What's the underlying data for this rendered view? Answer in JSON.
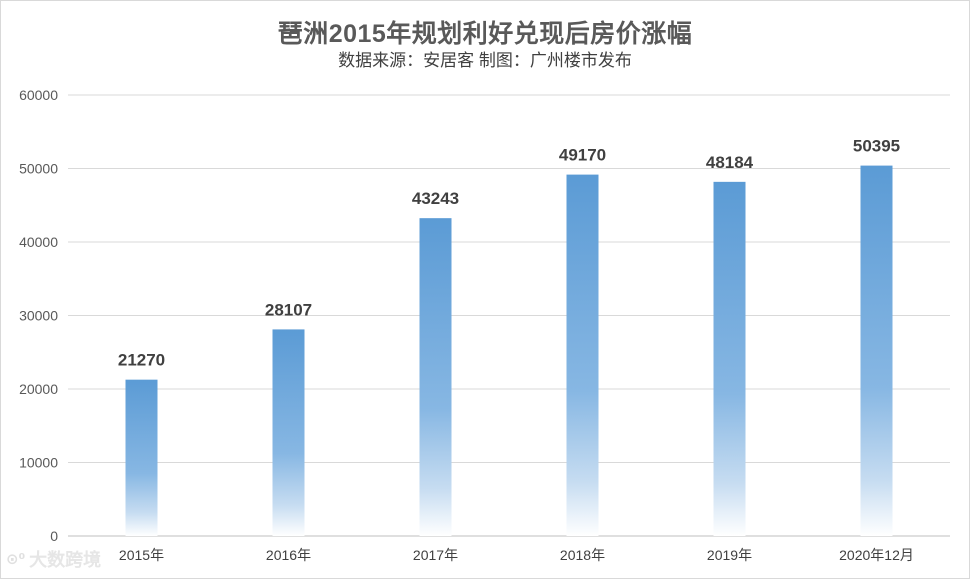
{
  "title": "琶洲2015年规划利好兑现后房价涨幅",
  "subtitle": "数据来源：安居客  制图：广州楼市发布",
  "watermark": {
    "text": "大数跨境",
    "icon": "watermark-logo-icon"
  },
  "colors": {
    "bar_top": "#5b9bd5",
    "bar_bottom": "#ffffff",
    "grid": "#d9d9d9",
    "text": "#404040"
  },
  "chart_data": {
    "type": "bar",
    "title": "琶洲2015年规划利好兑现后房价涨幅",
    "subtitle": "数据来源：安居客  制图：广州楼市发布",
    "categories": [
      "2015年",
      "2016年",
      "2017年",
      "2018年",
      "2019年",
      "2020年12月"
    ],
    "values": [
      21270,
      28107,
      43243,
      49170,
      48184,
      50395
    ],
    "ylim": [
      0,
      60000
    ],
    "yticks": [
      0,
      10000,
      20000,
      30000,
      40000,
      50000,
      60000
    ],
    "grid": true,
    "legend": "none",
    "xlabel": "",
    "ylabel": ""
  }
}
